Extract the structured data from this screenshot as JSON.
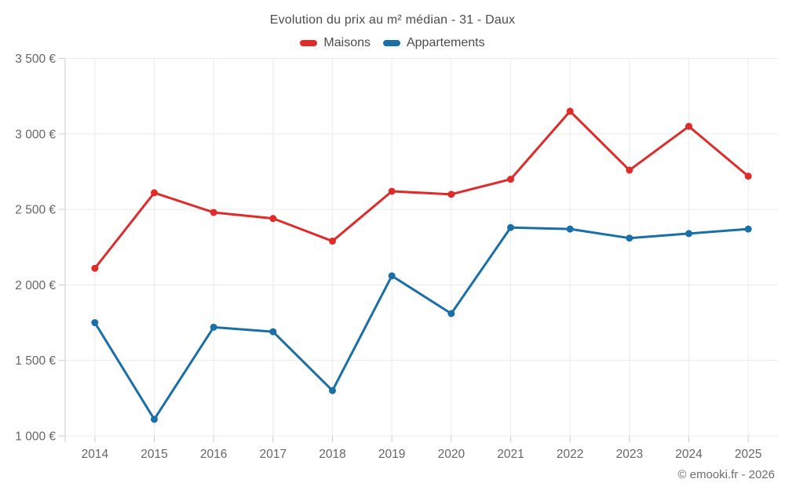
{
  "title": "Evolution du prix au m² médian - 31 - Daux",
  "copyright": "© emooki.fr - 2026",
  "colors": {
    "maisons": "#e02b2b",
    "appartements": "#1a6fa8",
    "gridline": "#ececec",
    "axis_line": "#cccccc",
    "tick_text": "#666666",
    "title_text": "#4c4c4c"
  },
  "chart_data": {
    "type": "line",
    "title": "Evolution du prix au m² médian - 31 - Daux",
    "xlabel": "",
    "ylabel": "",
    "categories": [
      "2014",
      "2015",
      "2016",
      "2017",
      "2018",
      "2019",
      "2020",
      "2021",
      "2022",
      "2023",
      "2024",
      "2025"
    ],
    "series": [
      {
        "name": "Maisons",
        "color": "#e02b2b",
        "values": [
          2110,
          2610,
          2480,
          2440,
          2290,
          2620,
          2600,
          2700,
          3150,
          2760,
          3050,
          2720
        ]
      },
      {
        "name": "Appartements",
        "color": "#1a6fa8",
        "values": [
          1750,
          1110,
          1720,
          1690,
          1300,
          2060,
          1810,
          2380,
          2370,
          2310,
          2340,
          2370
        ]
      }
    ],
    "ylim": [
      1000,
      3500
    ],
    "yticks": [
      {
        "value": 1000,
        "label": "1 000 €"
      },
      {
        "value": 1500,
        "label": "1 500 €"
      },
      {
        "value": 2000,
        "label": "2 000 €"
      },
      {
        "value": 2500,
        "label": "2 500 €"
      },
      {
        "value": 3000,
        "label": "3 000 €"
      },
      {
        "value": 3500,
        "label": "3 500 €"
      }
    ],
    "grid": true,
    "legend_position": "top",
    "marker": "circle"
  }
}
